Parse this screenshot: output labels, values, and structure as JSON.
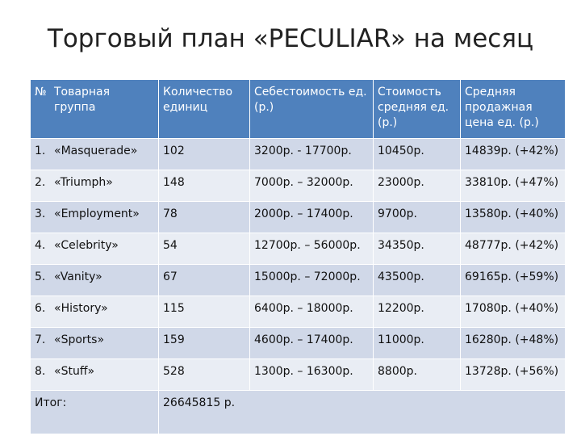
{
  "title": "Торговый план «PECULIAR» на месяц",
  "table": {
    "header": [
      "№",
      "Товарная группа",
      "Количество единиц",
      "Себестоимость ед. (р.)",
      "Стоимость средняя ед. (р.)",
      "Средняя продажная цена ед. (р.)"
    ],
    "rows": [
      [
        "1.",
        "«Masquerade»",
        "102",
        "3200р. - 17700р.",
        "10450р.",
        "14839р. (+42%)"
      ],
      [
        "2.",
        "«Triumph»",
        "148",
        "7000р. – 32000р.",
        "23000р.",
        "33810р. (+47%)"
      ],
      [
        "3.",
        "«Employment»",
        "78",
        "2000р. – 17400р.",
        "9700р.",
        "13580р. (+40%)"
      ],
      [
        "4.",
        "«Celebrity»",
        "54",
        "12700р. – 56000р.",
        "34350р.",
        "48777р. (+42%)"
      ],
      [
        "5.",
        "«Vanity»",
        "67",
        "15000р. – 72000р.",
        "43500р.",
        "69165р. (+59%)"
      ],
      [
        "6.",
        "«History»",
        "115",
        "6400р. – 18000р.",
        "12200р.",
        "17080р. (+40%)"
      ],
      [
        "7.",
        "«Sports»",
        "159",
        "4600р. – 17400р.",
        "11000р.",
        "16280р. (+48%)"
      ],
      [
        "8.",
        "«Stuff»",
        "528",
        "1300р. – 16300р.",
        "8800р.",
        "13728р. (+56%)"
      ]
    ],
    "total": {
      "label": "Итог:",
      "value": "26645815 р."
    }
  }
}
